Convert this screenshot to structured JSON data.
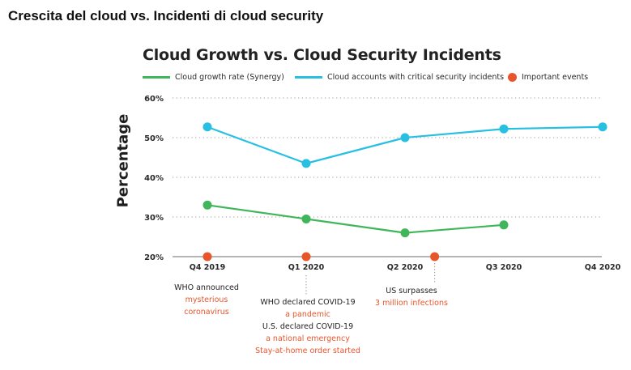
{
  "page_title": "Crescita del cloud vs. Incidenti di cloud security",
  "colors": {
    "green": "#3fb65a",
    "cyan": "#27c0e3",
    "orange": "#e8552b",
    "grid": "#9a9a9a",
    "text": "#222222"
  },
  "chart_data": {
    "type": "line",
    "title": "Cloud Growth vs. Cloud Security Incidents",
    "ylabel": "Percentage",
    "xlabel": "",
    "categories": [
      "Q4 2019",
      "Q1 2020",
      "Q2 2020",
      "Q3 2020",
      "Q4 2020"
    ],
    "ylim": [
      20,
      60
    ],
    "yticks": [
      "20%",
      "30%",
      "40%",
      "50%",
      "60%"
    ],
    "ytick_values": [
      20,
      30,
      40,
      50,
      60
    ],
    "grid": "dotted horizontal",
    "legend_position": "top",
    "series": [
      {
        "name": "Cloud growth rate (Synergy)",
        "color": "#3fb65a",
        "values": [
          33,
          29.5,
          26,
          28,
          null
        ]
      },
      {
        "name": "Cloud accounts with critical security incidents",
        "color": "#27c0e3",
        "values": [
          52.7,
          43.5,
          50,
          52.2,
          52.7
        ]
      }
    ],
    "events": {
      "name": "Important events",
      "color": "#e8552b",
      "x": [
        "Q4 2019",
        "Q1 2020",
        "between Q2 2020 and Q3 2020"
      ]
    },
    "annotations": [
      {
        "lines": [
          {
            "text": "WHO announced",
            "tone": "dark"
          },
          {
            "text": "mysterious",
            "tone": "orange"
          },
          {
            "text": "coronavirus",
            "tone": "orange"
          }
        ]
      },
      {
        "lines": [
          {
            "text": "WHO declared COVID-19",
            "tone": "dark"
          },
          {
            "text": "a pandemic",
            "tone": "orange"
          },
          {
            "text": "U.S. declared COVID-19",
            "tone": "dark"
          },
          {
            "text": "a national emergency",
            "tone": "orange"
          },
          {
            "text": "Stay-at-home order started",
            "tone": "orange"
          }
        ]
      },
      {
        "lines": [
          {
            "text": "US surpasses",
            "tone": "dark"
          },
          {
            "text": "3 million infections",
            "tone": "orange"
          }
        ]
      }
    ]
  }
}
